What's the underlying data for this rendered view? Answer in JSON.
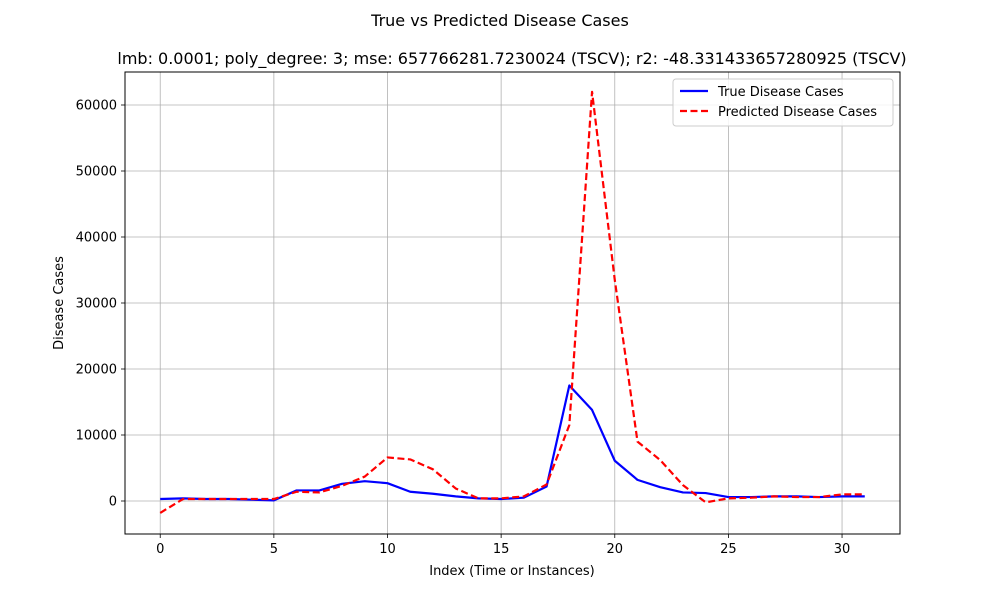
{
  "chart_data": {
    "type": "line",
    "title": "True vs Predicted Disease Cases",
    "subtitle": "lmb: 0.0001; poly_degree: 3; mse: 657766281.7230024 (TSCV); r2: -48.331433657280925 (TSCV)",
    "xlabel": "Index (Time or Instances)",
    "ylabel": "Disease Cases",
    "xlim": [
      -1.55,
      32.55
    ],
    "ylim": [
      -5000,
      65000
    ],
    "xticks": [
      0,
      5,
      10,
      15,
      20,
      25,
      30
    ],
    "yticks": [
      0,
      10000,
      20000,
      30000,
      40000,
      50000,
      60000
    ],
    "grid": true,
    "legend_position": "top-right",
    "x": [
      0,
      1,
      2,
      3,
      4,
      5,
      6,
      7,
      8,
      9,
      10,
      11,
      12,
      13,
      14,
      15,
      16,
      17,
      18,
      19,
      20,
      21,
      22,
      23,
      24,
      25,
      26,
      27,
      28,
      29,
      30,
      31
    ],
    "series": [
      {
        "name": "True Disease Cases",
        "color": "#0000ff",
        "style": "solid",
        "values": [
          300,
          400,
          300,
          300,
          200,
          100,
          1600,
          1600,
          2600,
          3000,
          2700,
          1400,
          1100,
          700,
          400,
          300,
          500,
          2200,
          17500,
          13800,
          6100,
          3200,
          2100,
          1300,
          1200,
          600,
          600,
          700,
          700,
          600,
          700,
          700
        ]
      },
      {
        "name": "Predicted Disease Cases",
        "color": "#ff0000",
        "style": "dashed",
        "values": [
          -1800,
          300,
          300,
          300,
          300,
          300,
          1400,
          1300,
          2300,
          3700,
          6600,
          6300,
          4800,
          1900,
          400,
          400,
          700,
          2500,
          11500,
          62000,
          33500,
          9000,
          6200,
          2400,
          -200,
          400,
          500,
          700,
          600,
          600,
          1000,
          1000
        ]
      }
    ]
  }
}
